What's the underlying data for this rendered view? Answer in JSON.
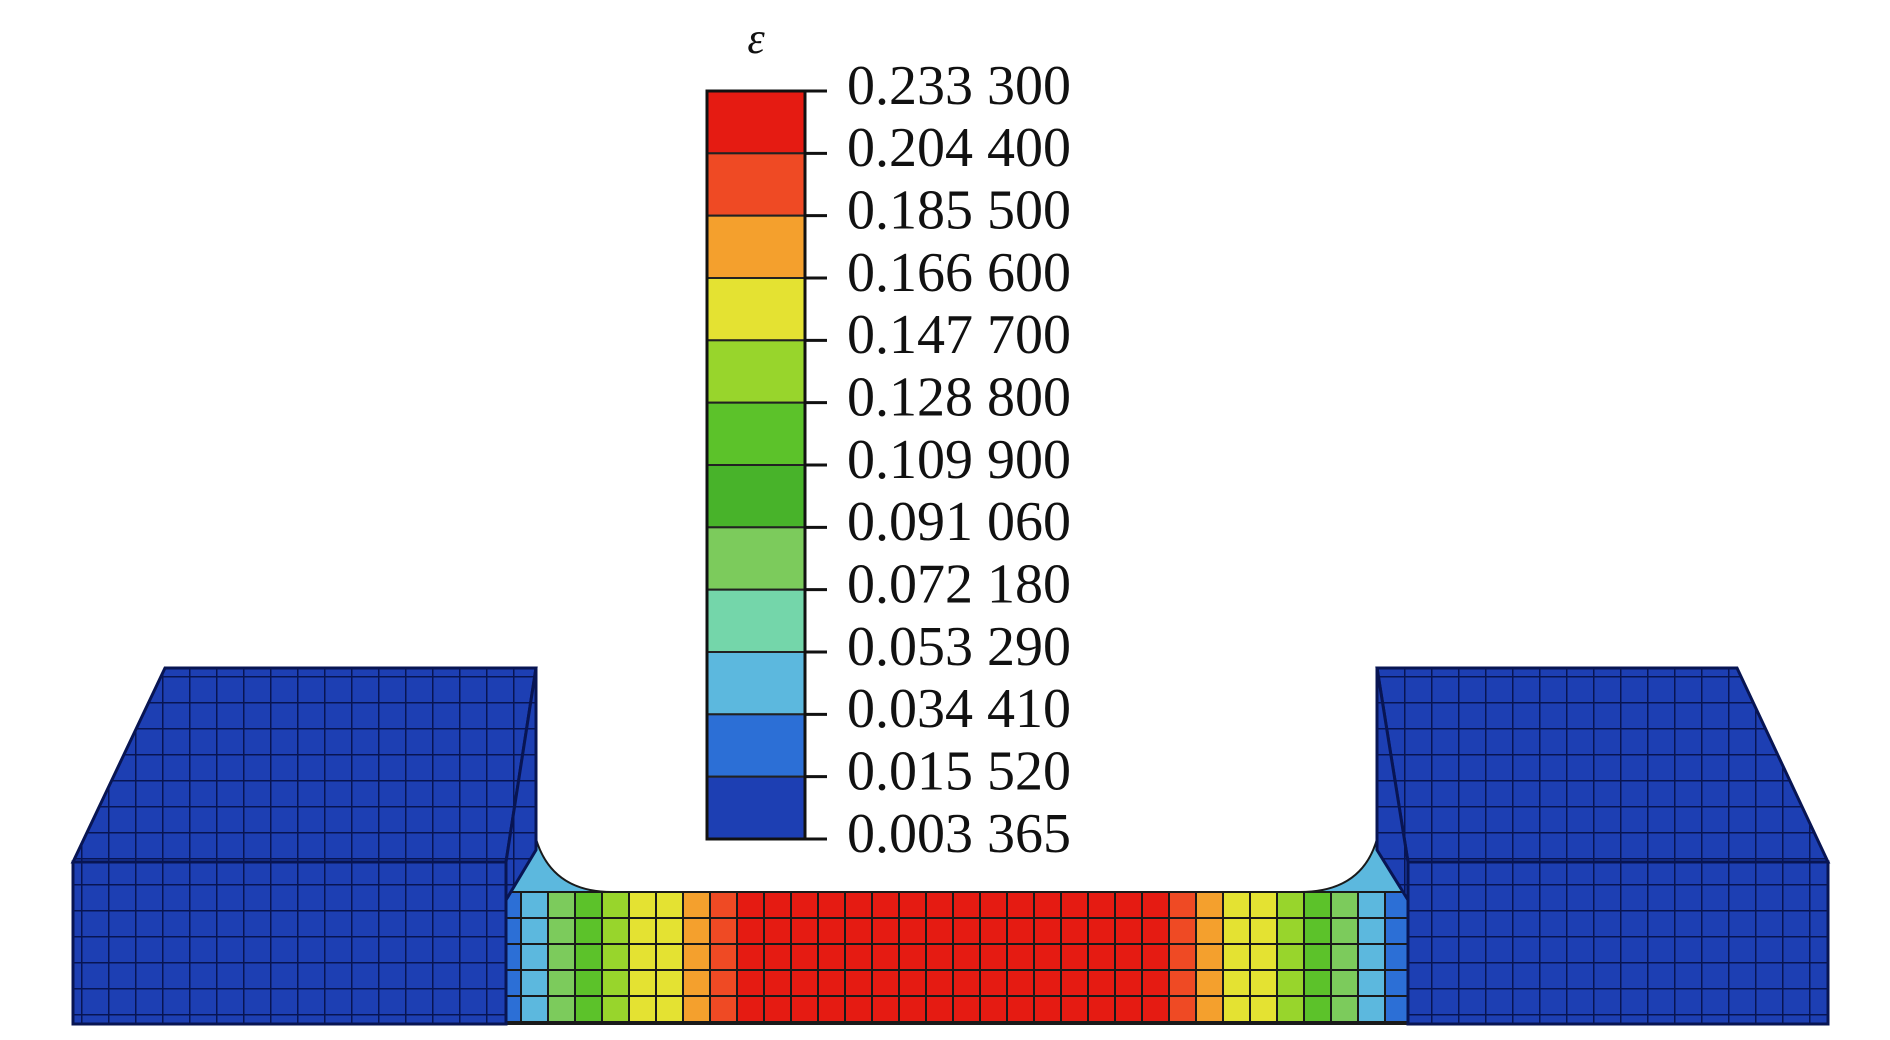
{
  "legend": {
    "title": "ε",
    "labels": [
      "0.233 300",
      "0.204 400",
      "0.185 500",
      "0.166 600",
      "0.147 700",
      "0.128 800",
      "0.109 900",
      "0.091 060",
      "0.072 180",
      "0.053 290",
      "0.034 410",
      "0.015 520",
      "0.003 365"
    ],
    "colors": [
      "#e51b12",
      "#ef4a24",
      "#f4a02d",
      "#e4e232",
      "#98d52c",
      "#5cc22a",
      "#48b32a",
      "#7ccb5c",
      "#74d6aa",
      "#5cb8de",
      "#2c6fd6",
      "#1d3fb3"
    ]
  }
}
